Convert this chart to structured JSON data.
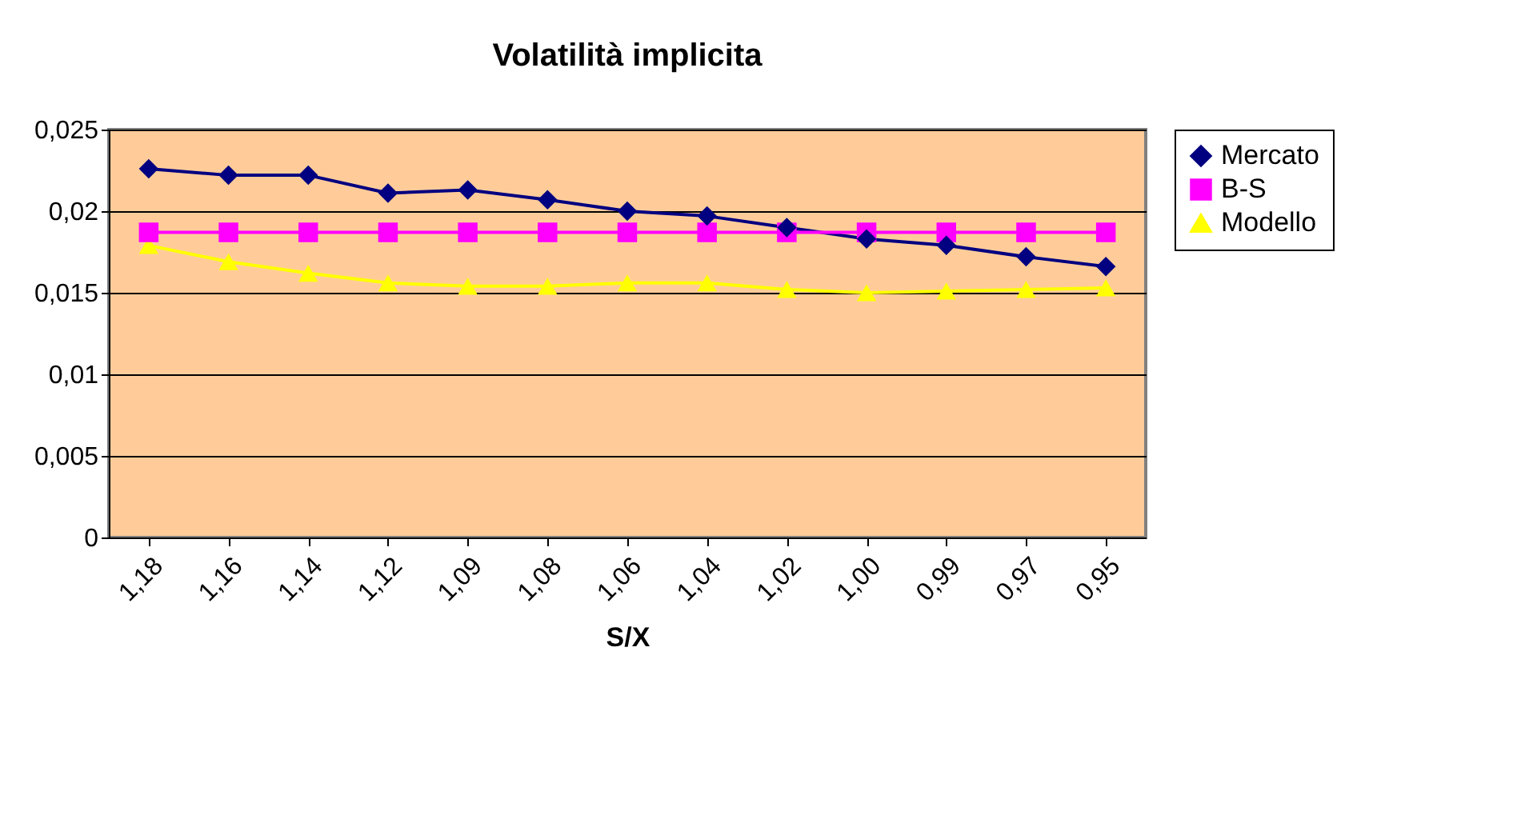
{
  "chart_data": {
    "type": "line",
    "title": "Volatilità implicita",
    "xlabel": "S/X",
    "categories": [
      "1,18",
      "1,16",
      "1,14",
      "1,12",
      "1,09",
      "1,08",
      "1,06",
      "1,04",
      "1,02",
      "1,00",
      "0,99",
      "0,97",
      "0,95"
    ],
    "series": [
      {
        "name": "Mercato",
        "color": "#000080",
        "marker": "diamond",
        "values": [
          0.0226,
          0.0222,
          0.0222,
          0.0211,
          0.0213,
          0.0207,
          0.02,
          0.0197,
          0.019,
          0.0183,
          0.0179,
          0.0172,
          0.0166
        ]
      },
      {
        "name": "B-S",
        "color": "#ff00ff",
        "marker": "square",
        "values": [
          0.0187,
          0.0187,
          0.0187,
          0.0187,
          0.0187,
          0.0187,
          0.0187,
          0.0187,
          0.0187,
          0.0187,
          0.0187,
          0.0187,
          0.0187
        ]
      },
      {
        "name": "Modello",
        "color": "#ffff00",
        "marker": "triangle",
        "values": [
          0.0179,
          0.0169,
          0.0162,
          0.0156,
          0.0154,
          0.0154,
          0.0156,
          0.0156,
          0.0152,
          0.015,
          0.0151,
          0.0152,
          0.0153
        ]
      }
    ],
    "ylim": [
      0,
      0.025
    ],
    "yticks": [
      {
        "value": 0,
        "label": "0"
      },
      {
        "value": 0.005,
        "label": "0,005"
      },
      {
        "value": 0.01,
        "label": "0,01"
      },
      {
        "value": 0.015,
        "label": "0,015"
      },
      {
        "value": 0.02,
        "label": "0,02"
      },
      {
        "value": 0.025,
        "label": "0,025"
      }
    ],
    "grid": "y",
    "legend": "right",
    "line_style": "solid"
  }
}
